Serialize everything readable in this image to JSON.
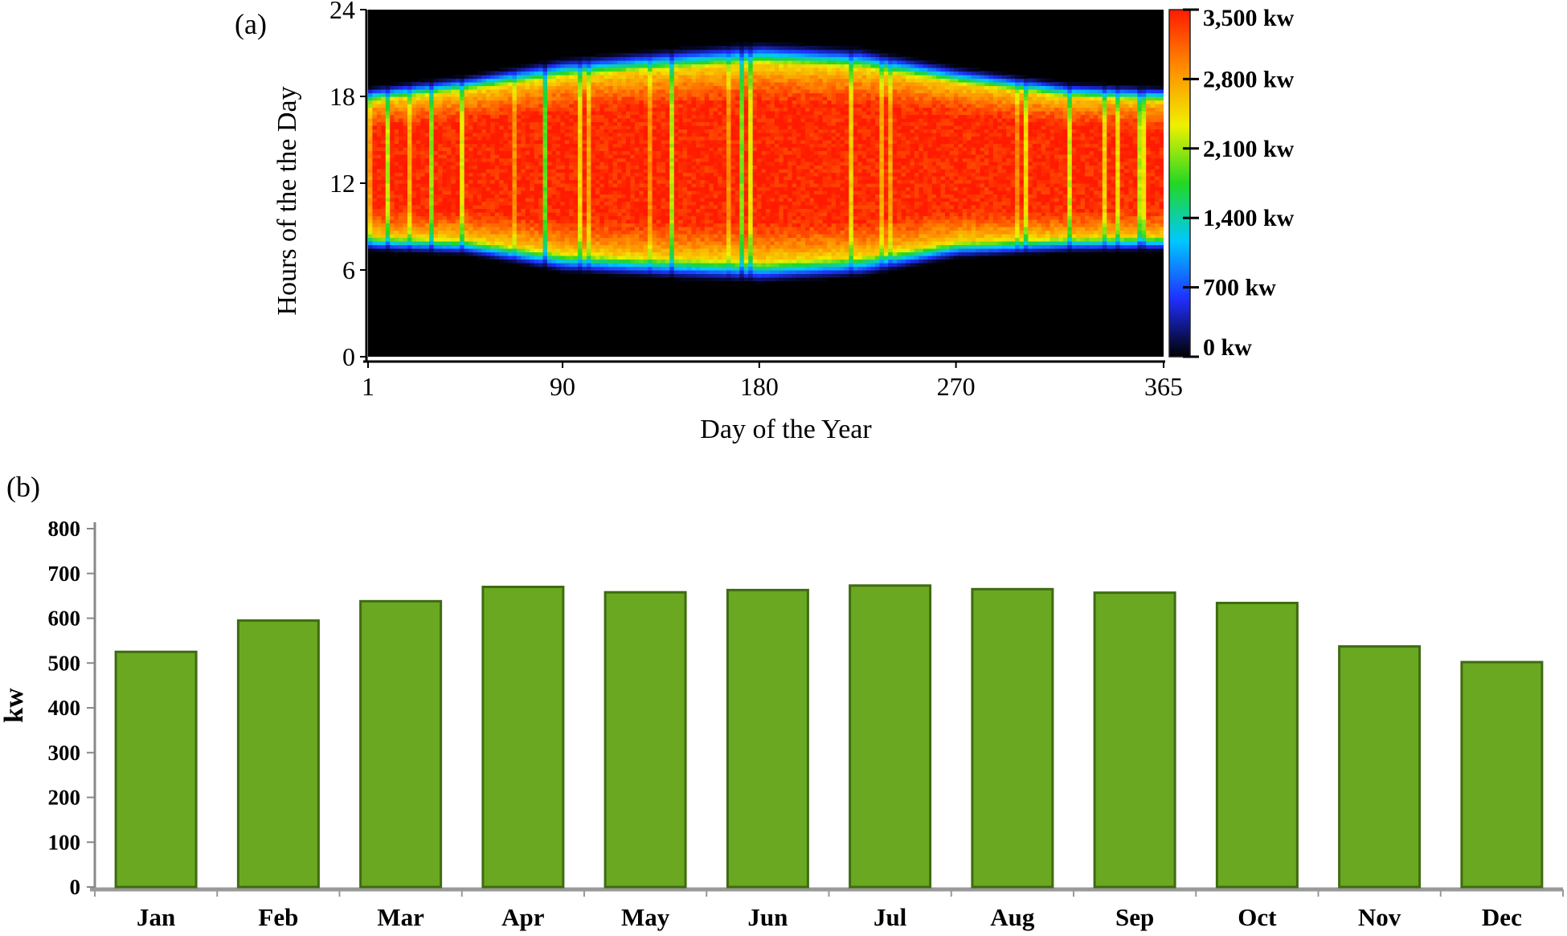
{
  "figure": {
    "panel_a_label": "(a)",
    "panel_b_label": "(b)"
  },
  "chart_data": [
    {
      "type": "heatmap",
      "panel": "(a)",
      "title": "",
      "xlabel": "Day of the Year",
      "ylabel": "Hours of the the Day",
      "xlim": [
        1,
        365
      ],
      "ylim": [
        0,
        24
      ],
      "x_ticks": [
        {
          "value": 1,
          "label": "1"
        },
        {
          "value": 90,
          "label": "90"
        },
        {
          "value": 180,
          "label": "180"
        },
        {
          "value": 270,
          "label": "270"
        },
        {
          "value": 365,
          "label": "365"
        }
      ],
      "y_ticks": [
        {
          "value": 0,
          "label": "0"
        },
        {
          "value": 6,
          "label": "6"
        },
        {
          "value": 12,
          "label": "12"
        },
        {
          "value": 18,
          "label": "18"
        },
        {
          "value": 24,
          "label": "24"
        }
      ],
      "colorbar": {
        "min": 0,
        "max": 3500,
        "colors": [
          "#000000",
          "#1f2fff",
          "#00c8ff",
          "#22d822",
          "#f0f000",
          "#ff8c00",
          "#ff1a00"
        ],
        "ticks": [
          {
            "value": 0,
            "label": "0 kw"
          },
          {
            "value": 700,
            "label": "700 kw"
          },
          {
            "value": 1400,
            "label": "1,400 kw"
          },
          {
            "value": 2100,
            "label": "2,100 kw"
          },
          {
            "value": 2800,
            "label": "2,800 kw"
          },
          {
            "value": 3500,
            "label": "3,500 kw"
          }
        ]
      },
      "seasonal_profile": [
        {
          "day": 1,
          "sunrise": 7.3,
          "sunset": 18.7
        },
        {
          "day": 45,
          "sunrise": 7.0,
          "sunset": 19.5
        },
        {
          "day": 90,
          "sunrise": 5.8,
          "sunset": 20.7
        },
        {
          "day": 135,
          "sunrise": 5.4,
          "sunset": 21.3
        },
        {
          "day": 180,
          "sunrise": 5.1,
          "sunset": 21.8
        },
        {
          "day": 225,
          "sunrise": 5.5,
          "sunset": 21.4
        },
        {
          "day": 270,
          "sunrise": 6.8,
          "sunset": 20.1
        },
        {
          "day": 320,
          "sunrise": 7.2,
          "sunset": 19.0
        },
        {
          "day": 365,
          "sunrise": 7.3,
          "sunset": 18.7
        }
      ],
      "peak_output_kw": 3500
    },
    {
      "type": "bar",
      "panel": "(b)",
      "title": "",
      "xlabel": "",
      "ylabel": "kw",
      "ylim": [
        0,
        800
      ],
      "y_ticks": [
        0,
        100,
        200,
        300,
        400,
        500,
        600,
        700,
        800
      ],
      "categories": [
        "Jan",
        "Feb",
        "Mar",
        "Apr",
        "May",
        "Jun",
        "Jul",
        "Aug",
        "Sep",
        "Oct",
        "Nov",
        "Dec"
      ],
      "values": [
        525,
        595,
        638,
        670,
        658,
        663,
        673,
        665,
        657,
        634,
        537,
        502
      ],
      "bar_color": "#6aa821",
      "bar_edge_color": "#3f6b12"
    }
  ]
}
